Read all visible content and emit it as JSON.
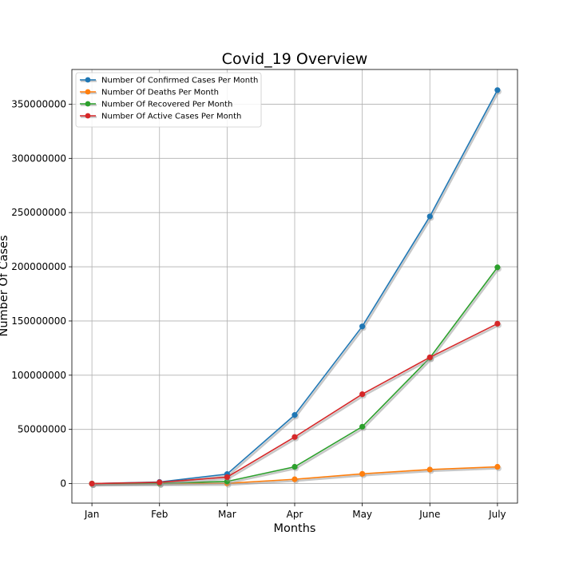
{
  "chart_data": {
    "type": "line",
    "title": "Covid_19 Overview",
    "xlabel": "Months",
    "ylabel": "Number Of Cases",
    "categories": [
      "Jan",
      "Feb",
      "Mar",
      "Apr",
      "May",
      "June",
      "July"
    ],
    "ylim": [
      -18000000,
      382000000
    ],
    "yticks": [
      0,
      50000000,
      100000000,
      150000000,
      200000000,
      250000000,
      300000000,
      350000000
    ],
    "ytick_labels": [
      "0",
      "50000000",
      "100000000",
      "150000000",
      "200000000",
      "250000000",
      "300000000",
      "350000000"
    ],
    "grid": true,
    "legend_position": "upper-left",
    "series": [
      {
        "name": "Number Of Confirmed Cases Per Month",
        "color": "#1f77b4",
        "values": [
          0,
          1500000,
          8800000,
          63300000,
          145000000,
          246500000,
          363000000
        ]
      },
      {
        "name": "Number Of Deaths Per Month",
        "color": "#ff7f0e",
        "values": [
          0,
          100000,
          300000,
          4000000,
          9000000,
          13000000,
          15500000
        ]
      },
      {
        "name": "Number Of Recovered Per Month",
        "color": "#2ca02c",
        "values": [
          0,
          300000,
          2000000,
          15500000,
          52500000,
          116000000,
          199500000
        ]
      },
      {
        "name": "Number Of Active Cases Per Month",
        "color": "#d62728",
        "values": [
          0,
          1200000,
          6000000,
          43000000,
          82500000,
          116500000,
          147500000
        ]
      }
    ]
  }
}
